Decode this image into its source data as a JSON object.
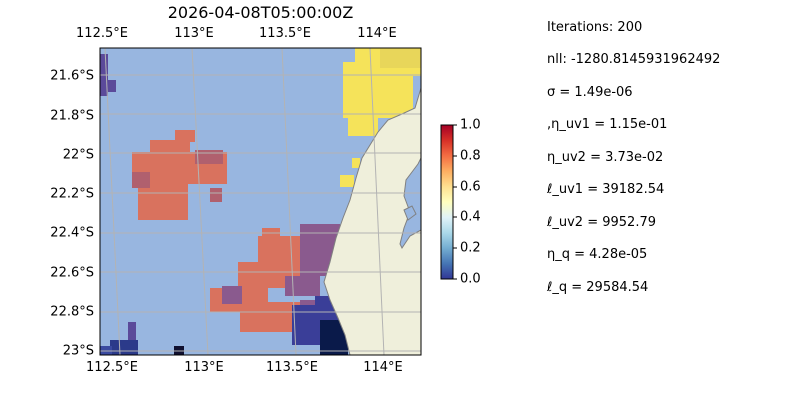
{
  "figure": {
    "title": "2026-04-08T05:00:00Z"
  },
  "map": {
    "lon_ticks": [
      "112.5°E",
      "113°E",
      "113.5°E",
      "114°E"
    ],
    "lat_ticks": [
      "21.6°S",
      "21.8°S",
      "22°S",
      "22.2°S",
      "22.4°S",
      "22.6°S",
      "22.8°S",
      "23°S"
    ],
    "colors": {
      "ocean": "#98b6e0",
      "land": "#efefdb",
      "coast": "#808080",
      "grid": "#b3b3b3"
    },
    "colormap": "RdYlBu_r",
    "colorbar": {
      "range": [
        0.0,
        1.0
      ],
      "ticks": [
        "0.0",
        "0.2",
        "0.4",
        "0.6",
        "0.8",
        "1.0"
      ]
    }
  },
  "stats": [
    "Iterations: 200",
    "nll: -1280.8145931962492",
    "σ = 1.49e-06",
    ",η_uv1 = 1.15e-01",
    "η_uv2 = 3.73e-02",
    "ℓ_uv1 = 39182.54",
    "ℓ_uv2 = 9952.79",
    "η_q = 4.28e-05",
    "ℓ_q = 29584.54"
  ]
}
